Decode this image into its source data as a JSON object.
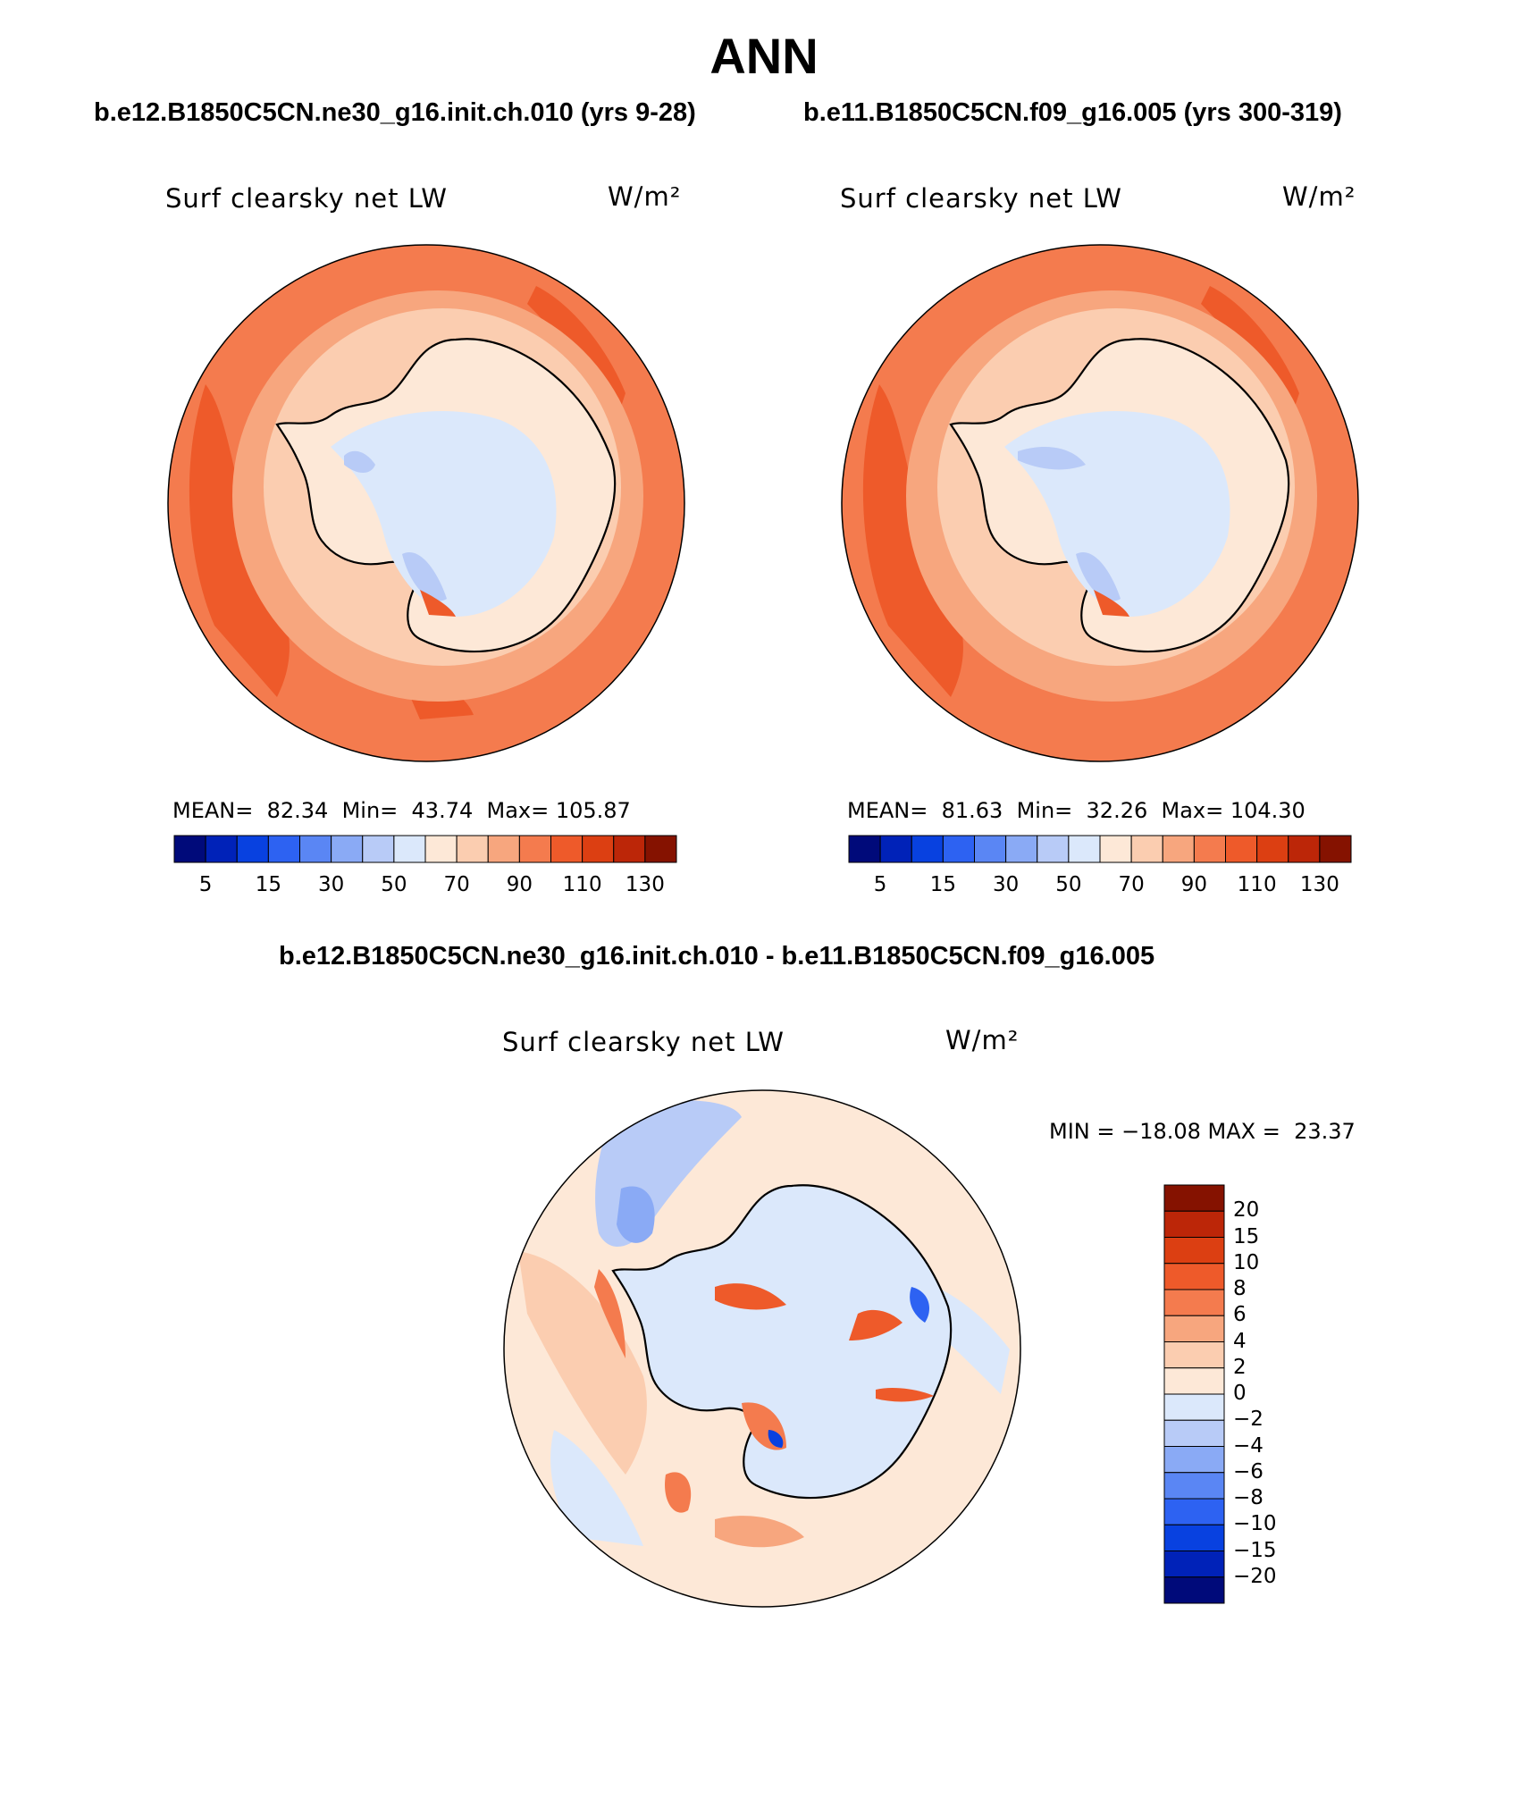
{
  "page_title": "ANN",
  "panels": [
    {
      "case_title": "b.e12.B1850C5CN.ne30_g16.init.ch.010 (yrs 9-28)",
      "field_label": "Surf clearsky net LW",
      "units_label": "W/m²",
      "stats_line": "MEAN=  82.34  Min=  43.74  Max= 105.87"
    },
    {
      "case_title": "b.e11.B1850C5CN.f09_g16.005 (yrs 300-319)",
      "field_label": "Surf clearsky net LW",
      "units_label": "W/m²",
      "stats_line": "MEAN=  81.63  Min=  32.26  Max= 104.30"
    }
  ],
  "diff_panel": {
    "case_title": "b.e12.B1850C5CN.ne30_g16.init.ch.010 - b.e11.B1850C5CN.f09_g16.005",
    "field_label": "Surf clearsky net LW",
    "units_label": "W/m²",
    "minmax_line": "MIN = −18.08 MAX =  23.37"
  },
  "chart_data": [
    {
      "type": "heatmap",
      "title": "b.e12.B1850C5CN.ne30_g16.init.ch.010 (yrs 9-28)",
      "field": "Surf clearsky net LW",
      "units": "W/m²",
      "projection": "south polar stereographic",
      "stats": {
        "mean": 82.34,
        "min": 43.74,
        "max": 105.87
      },
      "colorbar_orientation": "horizontal",
      "colorbar_tick_labels": [
        "5",
        "15",
        "30",
        "50",
        "70",
        "90",
        "110",
        "130"
      ],
      "colorbar_colors": [
        "#000a7a",
        "#0022b8",
        "#0841e0",
        "#2d62f2",
        "#5a86f4",
        "#8aaaf5",
        "#b8cbf7",
        "#dbe8fb",
        "#fde8d7",
        "#fbcdb0",
        "#f7a67e",
        "#f47b4e",
        "#ee5a2a",
        "#dc3f12",
        "#bc2608",
        "#851200"
      ]
    },
    {
      "type": "heatmap",
      "title": "b.e11.B1850C5CN.f09_g16.005 (yrs 300-319)",
      "field": "Surf clearsky net LW",
      "units": "W/m²",
      "projection": "south polar stereographic",
      "stats": {
        "mean": 81.63,
        "min": 32.26,
        "max": 104.3
      },
      "colorbar_orientation": "horizontal",
      "colorbar_tick_labels": [
        "5",
        "15",
        "30",
        "50",
        "70",
        "90",
        "110",
        "130"
      ],
      "colorbar_colors": [
        "#000a7a",
        "#0022b8",
        "#0841e0",
        "#2d62f2",
        "#5a86f4",
        "#8aaaf5",
        "#b8cbf7",
        "#dbe8fb",
        "#fde8d7",
        "#fbcdb0",
        "#f7a67e",
        "#f47b4e",
        "#ee5a2a",
        "#dc3f12",
        "#bc2608",
        "#851200"
      ]
    },
    {
      "type": "heatmap",
      "title": "b.e12.B1850C5CN.ne30_g16.init.ch.010 - b.e11.B1850C5CN.f09_g16.005",
      "field": "Surf clearsky net LW",
      "units": "W/m²",
      "projection": "south polar stereographic",
      "stats": {
        "min": -18.08,
        "max": 23.37
      },
      "colorbar_orientation": "vertical",
      "colorbar_tick_labels": [
        "20",
        "15",
        "10",
        "8",
        "6",
        "4",
        "2",
        "0",
        "−2",
        "−4",
        "−6",
        "−8",
        "−10",
        "−15",
        "−20"
      ],
      "colorbar_colors_top_to_bottom": [
        "#851200",
        "#bc2608",
        "#dc3f12",
        "#ee5a2a",
        "#f47b4e",
        "#f7a67e",
        "#fbcdb0",
        "#fde8d7",
        "#dbe8fb",
        "#b8cbf7",
        "#8aaaf5",
        "#5a86f4",
        "#2d62f2",
        "#0841e0",
        "#0022b8",
        "#000a7a"
      ]
    }
  ]
}
